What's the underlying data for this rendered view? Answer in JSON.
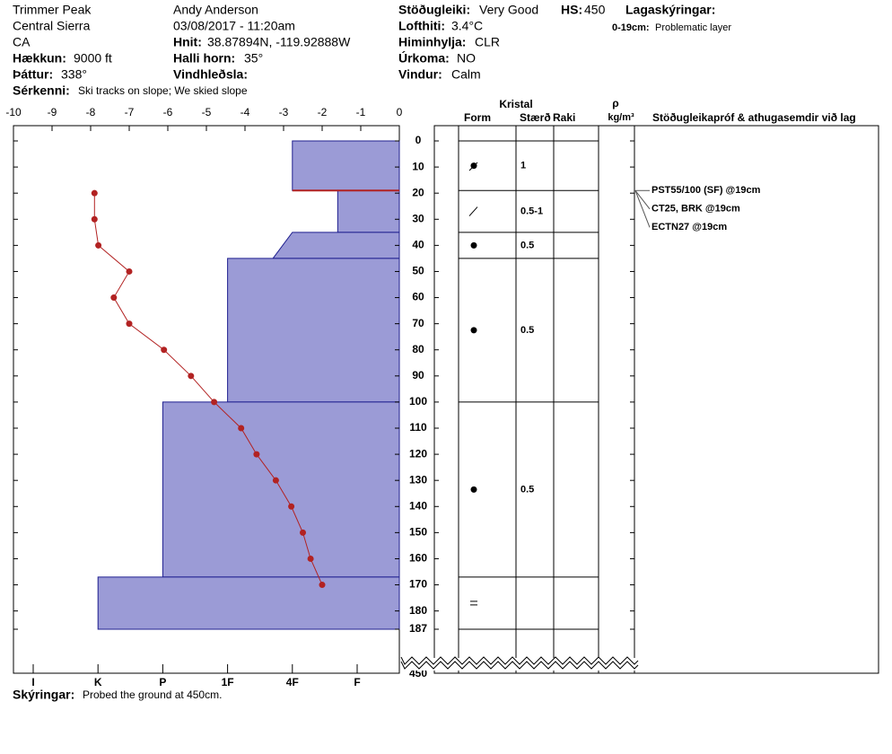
{
  "header": {
    "location": "Trimmer Peak",
    "range": "Central Sierra",
    "state": "CA",
    "elevation_label": "Hækkun:",
    "elevation": "9000 ft",
    "aspect_label": "Þáttur:",
    "aspect": "338°",
    "features_label": "Sérkenni:",
    "features": "Ski tracks on slope; We skied slope",
    "observer": "Andy Anderson",
    "datetime": "03/08/2017 - 11:20am",
    "coords_label": "Hnit:",
    "coords": "38.87894N, -119.92888W",
    "slope_label": "Halli horn:",
    "slope": "35°",
    "wind_loading_label": "Vindhleðsla:",
    "stability_label": "Stöðugleiki:",
    "stability": "Very Good",
    "hs_label": "HS:",
    "hs": "450",
    "air_temp_label": "Lofthiti:",
    "air_temp": "3.4°C",
    "sky_label": "Himinhylja:",
    "sky": "CLR",
    "precip_label": "Úrkoma:",
    "precip": "NO",
    "wind_label": "Vindur:",
    "wind": "Calm",
    "layer_notes_label": "Lagaskýringar:",
    "layer_note_range": "0-19cm:",
    "layer_note": "Problematic layer"
  },
  "table": {
    "crystal": "Kristal",
    "form": "Form",
    "size": "Stærð",
    "moisture": "Raki",
    "rho": "ρ",
    "density_unit": "kg/m³",
    "tests": "Stöðugleikapróf & athugasemdir við lag",
    "comments": [
      {
        "depth": 19,
        "text": "PST55/100 (SF) @19cm"
      },
      {
        "depth": 19,
        "text": "CT25, BRK @19cm"
      },
      {
        "depth": 19,
        "text": "ECTN27 @19cm"
      }
    ]
  },
  "footer": {
    "notes_label": "Skýringar:",
    "notes": "Probed the ground at 450cm."
  },
  "chart_data": {
    "type": "snow-profile",
    "xlim": [
      -10,
      0
    ],
    "xticks": [
      -10,
      -9,
      -8,
      -7,
      -6,
      -5,
      -4,
      -3,
      -2,
      -1,
      0
    ],
    "ylim": [
      0,
      187
    ],
    "yticks": [
      0,
      10,
      20,
      30,
      40,
      50,
      60,
      70,
      80,
      90,
      100,
      110,
      120,
      130,
      140,
      150,
      160,
      170,
      180,
      187
    ],
    "total_depth": 450,
    "hardness_ticks": [
      {
        "value": 6,
        "label": "I"
      },
      {
        "value": 5,
        "label": "K"
      },
      {
        "value": 4,
        "label": "P"
      },
      {
        "value": 3,
        "label": "1F"
      },
      {
        "value": 2,
        "label": "4F"
      },
      {
        "value": 1,
        "label": "F"
      }
    ],
    "temperature": {
      "color": "#b22222",
      "depths": [
        20,
        30,
        40,
        50,
        60,
        70,
        80,
        90,
        100,
        110,
        120,
        130,
        140,
        150,
        160,
        170
      ],
      "values": [
        -7.9,
        -7.9,
        -7.8,
        -7.0,
        -7.4,
        -7.0,
        -6.1,
        -5.4,
        -4.8,
        -4.1,
        -3.7,
        -3.2,
        -2.8,
        -2.5,
        -2.3,
        -2.0
      ]
    },
    "layer_color": "#9b9bd6",
    "concern_color": "#b22222",
    "layers": [
      {
        "top": 0,
        "bottom": 19,
        "hardness": 2,
        "hardness_bottom": 2,
        "grain_size": "1"
      },
      {
        "top": 19,
        "bottom": 35,
        "hardness": 1.3,
        "hardness_bottom": 1.3,
        "grain_size": "0.5-1"
      },
      {
        "top": 35,
        "bottom": 45,
        "hardness": 2,
        "hardness_bottom": 2.3,
        "grain_size": "0.5"
      },
      {
        "top": 45,
        "bottom": 100,
        "hardness": 3,
        "hardness_bottom": 3,
        "grain_size": "0.5"
      },
      {
        "top": 100,
        "bottom": 167,
        "hardness": 4,
        "hardness_bottom": 4,
        "grain_size": "0.5"
      },
      {
        "top": 167,
        "bottom": 187,
        "hardness": 5,
        "hardness_bottom": 5,
        "grain_size": null
      }
    ]
  }
}
